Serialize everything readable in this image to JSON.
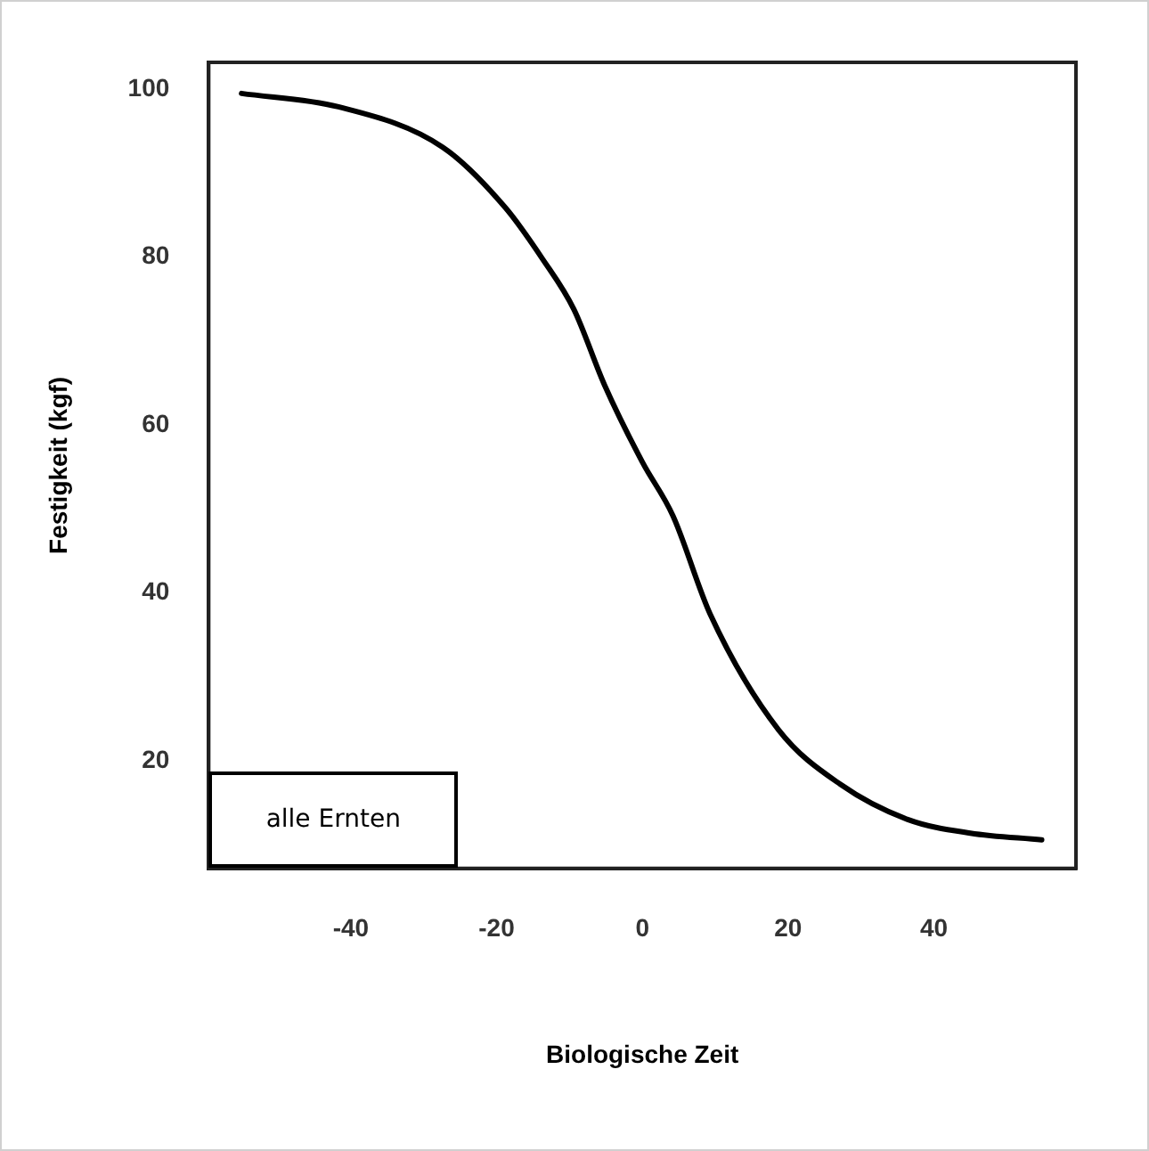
{
  "chart_data": {
    "type": "line",
    "xlabel": "Biologische Zeit",
    "ylabel": "Festigkeit (kgf)",
    "x": [
      -55,
      -41.7,
      -27.4,
      -18.8,
      -13.7,
      -9.4,
      -5.2,
      0,
      4.2,
      9.3,
      18.7,
      27.2,
      36.5,
      45,
      54.8
    ],
    "series": [
      {
        "color": "#000000",
        "values": [
          99.5,
          97.9,
          93.1,
          85.9,
          79.8,
          73.8,
          64.8,
          55.6,
          49.2,
          37.5,
          23.7,
          17.2,
          13,
          11.4,
          10.6
        ]
      }
    ],
    "xlim": [
      -59.5,
      59.5
    ],
    "xticks": [
      -40,
      -20,
      0,
      20,
      40
    ],
    "ylim": [
      7.2,
      103.2
    ],
    "yticks": [
      20,
      40,
      60,
      80,
      100
    ],
    "grid": false,
    "legend": false,
    "marker": "none",
    "line_style": "solid",
    "annotations": [
      "alle Ernten"
    ]
  }
}
